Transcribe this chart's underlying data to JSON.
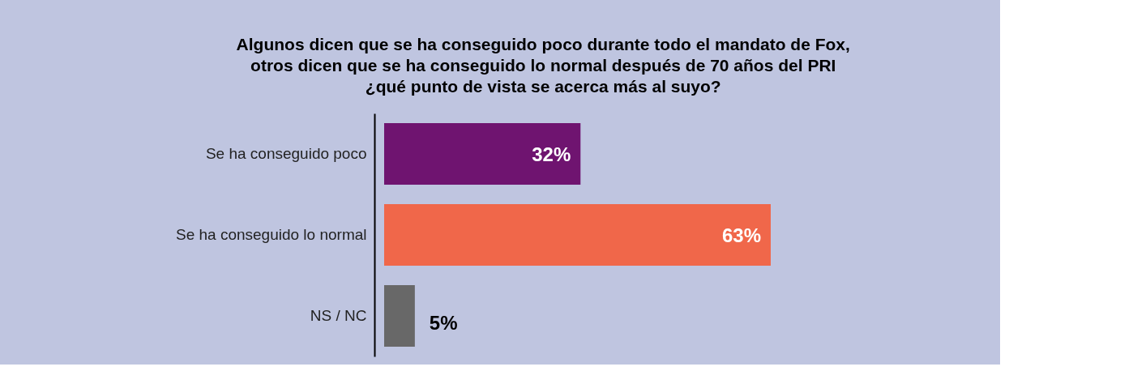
{
  "chart_data": {
    "type": "bar",
    "orientation": "horizontal",
    "title": [
      "Algunos dicen que se ha conseguido poco durante todo el mandato de Fox,",
      "otros dicen que se ha conseguido lo normal después de 70 años del PRI",
      "¿qué punto de vista se acerca más al suyo?"
    ],
    "categories": [
      "Se ha conseguido poco",
      "Se ha conseguido lo normal",
      "NS / NC"
    ],
    "values": [
      32,
      63,
      5
    ],
    "colors": [
      "#6f1470",
      "#f0674a",
      "#686868"
    ],
    "value_labels": [
      "32%",
      "63%",
      "5%"
    ],
    "tick_labels": "y",
    "legend": false
  }
}
